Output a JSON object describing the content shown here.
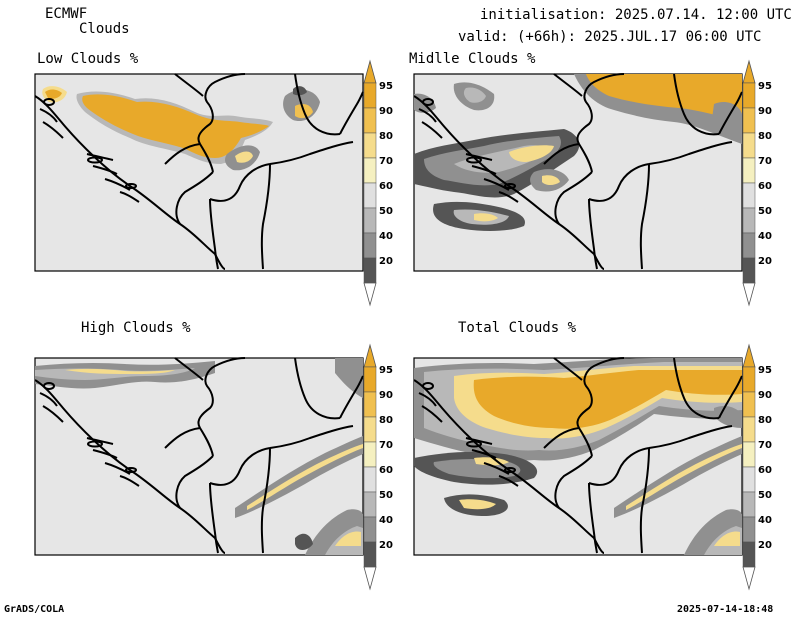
{
  "header": {
    "model": "ECMWF",
    "product": "Clouds",
    "init_line": "initialisation: 2025.07.14. 12:00 UTC",
    "valid_line": "valid: (+66h): 2025.JUL.17 06:00 UTC"
  },
  "footer": {
    "left": "GrADS/COLA",
    "right": "2025-07-14-18:48"
  },
  "panels": [
    {
      "title": "Low Clouds %"
    },
    {
      "title": "Midlle Clouds %"
    },
    {
      "title": "High Clouds %"
    },
    {
      "title": "Total Clouds %"
    }
  ],
  "colorbar": {
    "ticks": [
      "95",
      "90",
      "80",
      "70",
      "60",
      "50",
      "40",
      "20"
    ],
    "colors": {
      "c95": "#e8a92a",
      "c90": "#f0c050",
      "c80": "#f5dc8c",
      "c70": "#f5f0c0",
      "c60": "#e0e0e0",
      "c50": "#b8b8b8",
      "c40": "#909090",
      "c20": "#555555",
      "low": "#ffffff"
    }
  },
  "colors": {
    "land": "#e6e6e6",
    "border": "#000000"
  }
}
